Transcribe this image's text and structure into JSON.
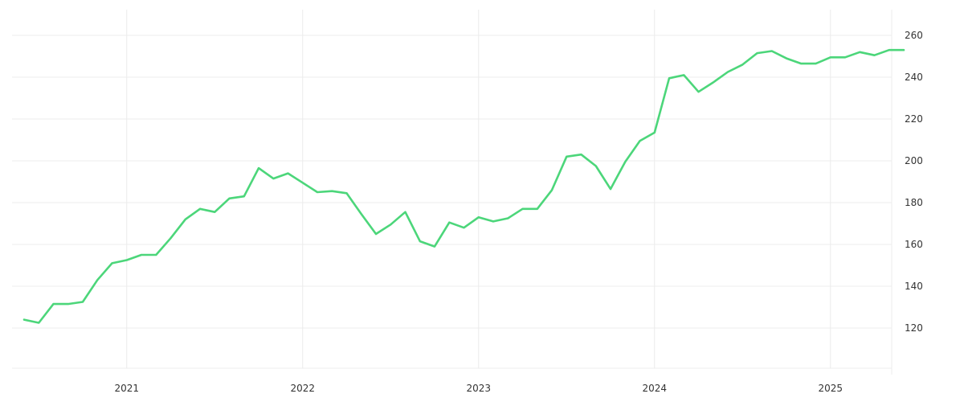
{
  "chart_data": {
    "type": "line",
    "title": "",
    "xlabel": "",
    "ylabel": "",
    "x_ticks": [
      "2021",
      "2022",
      "2023",
      "2024",
      "2025"
    ],
    "y_ticks": [
      120,
      140,
      160,
      180,
      200,
      220,
      240,
      260
    ],
    "ylim": [
      100,
      270
    ],
    "y_axis_position": "right",
    "grid": true,
    "legend": "none",
    "line_color": "#4cd67a",
    "series": [
      {
        "x": [
          "2020-06",
          "2020-07",
          "2020-08",
          "2020-09",
          "2020-10",
          "2020-11",
          "2020-12",
          "2021-01",
          "2021-02",
          "2021-03",
          "2021-04",
          "2021-05",
          "2021-06",
          "2021-07",
          "2021-08",
          "2021-09",
          "2021-10",
          "2021-11",
          "2021-12",
          "2022-01",
          "2022-02",
          "2022-03",
          "2022-04",
          "2022-05",
          "2022-06",
          "2022-07",
          "2022-08",
          "2022-09",
          "2022-10",
          "2022-11",
          "2022-12",
          "2023-01",
          "2023-02",
          "2023-03",
          "2023-04",
          "2023-05",
          "2023-06",
          "2023-07",
          "2023-08",
          "2023-09",
          "2023-10",
          "2023-11",
          "2023-12",
          "2024-01",
          "2024-02",
          "2024-03",
          "2024-04",
          "2024-05",
          "2024-06",
          "2024-07",
          "2024-08",
          "2024-09",
          "2024-10",
          "2024-11",
          "2024-12",
          "2025-01",
          "2025-02",
          "2025-03",
          "2025-04",
          "2025-05",
          "2025-06"
        ],
        "values": [
          124,
          122.5,
          131.5,
          131.5,
          132.5,
          143,
          151,
          152.5,
          155,
          155,
          163,
          172,
          177,
          175.5,
          182,
          183,
          196.5,
          191.5,
          194,
          189.5,
          185,
          185.5,
          184.5,
          174.5,
          165,
          169.5,
          175.5,
          161.5,
          159,
          170.5,
          168,
          173,
          171,
          172.5,
          177,
          177,
          186,
          202,
          203,
          197.5,
          186.5,
          199.5,
          209.5,
          213.5,
          239.5,
          241,
          233,
          237.5,
          242.5,
          246,
          251.5,
          252.5,
          249,
          246.5,
          246.5,
          249.5,
          249.5,
          252,
          250.5,
          253,
          253
        ]
      }
    ]
  }
}
